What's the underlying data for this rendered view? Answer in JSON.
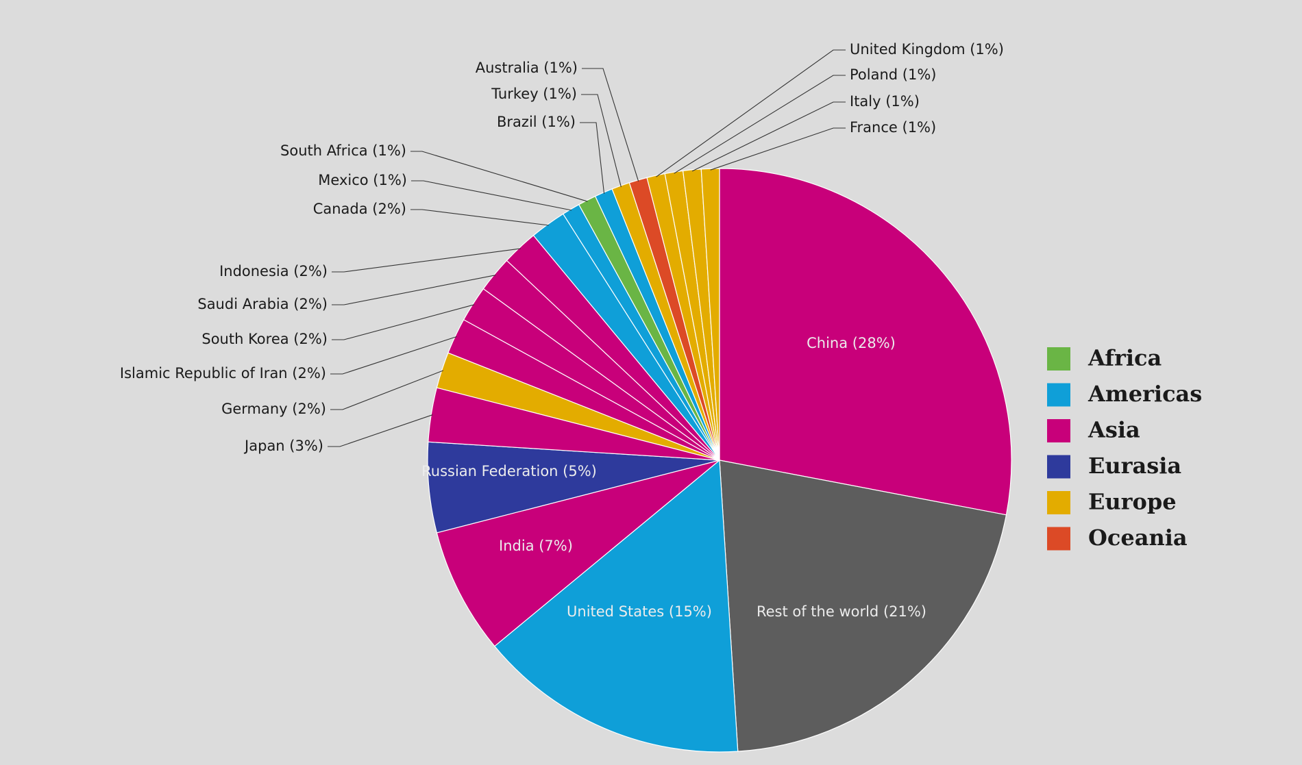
{
  "chart_data": {
    "type": "pie",
    "start_angle_deg": 0,
    "direction": "clockwise",
    "region_colors": {
      "Africa": "#6ab545",
      "Americas": "#0f9fd8",
      "Asia": "#c8007a",
      "Eurasia": "#2e3a9c",
      "Europe": "#e3ac00",
      "Oceania": "#dc4a26",
      "Other": "#5d5d5d"
    },
    "slices": [
      {
        "label": "China (28%)",
        "value": 28,
        "region": "Asia"
      },
      {
        "label": "Rest of the world (21%)",
        "value": 21,
        "region": "Other"
      },
      {
        "label": "United States (15%)",
        "value": 15,
        "region": "Americas"
      },
      {
        "label": "India (7%)",
        "value": 7,
        "region": "Asia"
      },
      {
        "label": "Russian Federation (5%)",
        "value": 5,
        "region": "Eurasia"
      },
      {
        "label": "Japan (3%)",
        "value": 3,
        "region": "Asia"
      },
      {
        "label": "Germany (2%)",
        "value": 2,
        "region": "Europe"
      },
      {
        "label": "Islamic Republic of Iran (2%)",
        "value": 2,
        "region": "Asia"
      },
      {
        "label": "South Korea (2%)",
        "value": 2,
        "region": "Asia"
      },
      {
        "label": "Saudi Arabia (2%)",
        "value": 2,
        "region": "Asia"
      },
      {
        "label": "Indonesia (2%)",
        "value": 2,
        "region": "Asia"
      },
      {
        "label": "Canada (2%)",
        "value": 2,
        "region": "Americas"
      },
      {
        "label": "Mexico (1%)",
        "value": 1,
        "region": "Americas"
      },
      {
        "label": "South Africa (1%)",
        "value": 1,
        "region": "Africa"
      },
      {
        "label": "Brazil (1%)",
        "value": 1,
        "region": "Americas"
      },
      {
        "label": "Turkey (1%)",
        "value": 1,
        "region": "Europe"
      },
      {
        "label": "Australia (1%)",
        "value": 1,
        "region": "Oceania"
      },
      {
        "label": "United Kingdom (1%)",
        "value": 1,
        "region": "Europe"
      },
      {
        "label": "Poland (1%)",
        "value": 1,
        "region": "Europe"
      },
      {
        "label": "Italy (1%)",
        "value": 1,
        "region": "Europe"
      },
      {
        "label": "France (1%)",
        "value": 1,
        "region": "Europe"
      }
    ],
    "legend": {
      "placement": "right",
      "entries": [
        "Africa",
        "Americas",
        "Asia",
        "Eurasia",
        "Europe",
        "Oceania"
      ]
    }
  }
}
